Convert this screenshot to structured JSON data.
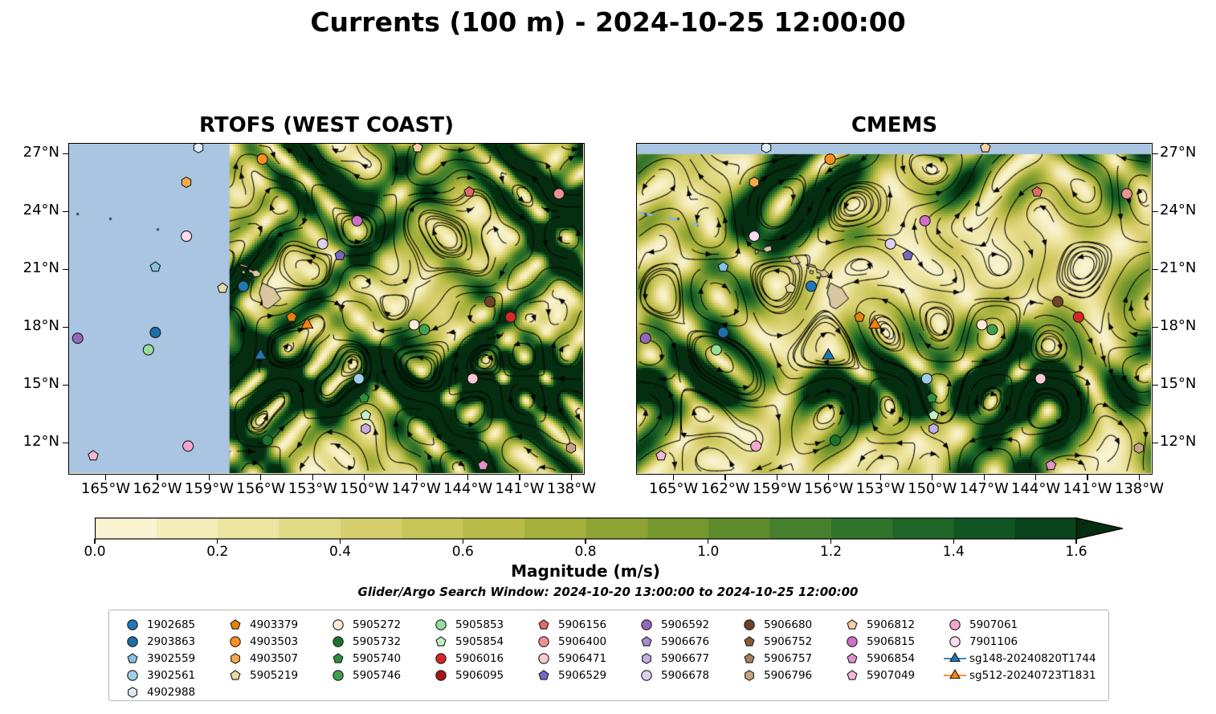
{
  "title": "Currents (100 m) - 2024-10-25 12:00:00",
  "subtitle": "Glider/Argo Search Window: 2024-10-20 13:00:00 to 2024-10-25 12:00:00",
  "chart_data": {
    "type": "streamline-map",
    "panels": [
      {
        "title": "RTOFS (WEST COAST)",
        "no_data_note": "no-data region west of ~158°W shown in blue"
      },
      {
        "title": "CMEMS",
        "no_data_note": "no-data band north of ~27°N shown in blue"
      }
    ],
    "lon_axis": {
      "tick_labels": [
        "165°W",
        "162°W",
        "159°W",
        "156°W",
        "153°W",
        "150°W",
        "147°W",
        "144°W",
        "141°W",
        "138°W"
      ],
      "tick_values": [
        -165,
        -162,
        -159,
        -156,
        -153,
        -150,
        -147,
        -144,
        -141,
        -138
      ],
      "range": [
        -167.1,
        -137.3
      ]
    },
    "lat_axis": {
      "tick_labels": [
        "27°N",
        "24°N",
        "21°N",
        "18°N",
        "15°N",
        "12°N"
      ],
      "tick_values": [
        27,
        24,
        21,
        18,
        15,
        12
      ],
      "range": [
        10.4,
        27.5
      ]
    },
    "colorbar": {
      "label": "Magnitude (m/s)",
      "tick_labels": [
        "0.0",
        "0.2",
        "0.4",
        "0.6",
        "0.8",
        "1.0",
        "1.2",
        "1.4",
        "1.6"
      ],
      "tick_values": [
        0,
        0.2,
        0.4,
        0.6,
        0.8,
        1.0,
        1.2,
        1.4,
        1.6
      ],
      "range": [
        0,
        1.6
      ],
      "extend": "max",
      "band_colors": [
        "#faf3d2",
        "#f4ecb9",
        "#ece49f",
        "#e2d985",
        "#d7cf6d",
        "#c9c558",
        "#b8bb48",
        "#a4b03c",
        "#8da434",
        "#75982f",
        "#5d8c2d",
        "#46802c",
        "#30732a",
        "#1e6527",
        "#105522",
        "#09431a"
      ],
      "extend_color": "#052e10"
    },
    "floats": [
      {
        "id": "1902685",
        "lon": -157.0,
        "lat": 20.1
      },
      {
        "id": "2903863",
        "lon": -162.1,
        "lat": 17.7
      },
      {
        "id": "3902559",
        "lon": -162.1,
        "lat": 21.1
      },
      {
        "id": "3902561",
        "lon": -150.3,
        "lat": 15.3
      },
      {
        "id": "4902988",
        "lon": -159.6,
        "lat": 27.3
      },
      {
        "id": "4903379",
        "lon": -154.2,
        "lat": 18.5
      },
      {
        "id": "4903503",
        "lon": -155.9,
        "lat": 26.7
      },
      {
        "id": "4903507",
        "lon": -160.3,
        "lat": 25.5
      },
      {
        "id": "5905219",
        "lon": -158.2,
        "lat": 20.0
      },
      {
        "id": "5905272",
        "lon": -147.1,
        "lat": 18.1
      },
      {
        "id": "5905732",
        "lon": -155.6,
        "lat": 12.1
      },
      {
        "id": "5905740",
        "lon": -150.0,
        "lat": 14.3
      },
      {
        "id": "5905746",
        "lon": -146.5,
        "lat": 17.85
      },
      {
        "id": "5905853",
        "lon": -162.5,
        "lat": 16.8
      },
      {
        "id": "5905854",
        "lon": -149.9,
        "lat": 13.4
      },
      {
        "id": "5906016",
        "lon": -141.5,
        "lat": 18.5
      },
      {
        "id": "5906156",
        "lon": -143.9,
        "lat": 25.0
      },
      {
        "id": "5906400",
        "lon": -138.7,
        "lat": 24.9
      },
      {
        "id": "5906471",
        "lon": -143.7,
        "lat": 15.3
      },
      {
        "id": "5906529",
        "lon": -151.4,
        "lat": 21.7
      },
      {
        "id": "5906592",
        "lon": -166.6,
        "lat": 17.4
      },
      {
        "id": "5906677",
        "lon": -149.9,
        "lat": 12.7
      },
      {
        "id": "5906678",
        "lon": -152.4,
        "lat": 22.3
      },
      {
        "id": "5906680",
        "lon": -142.7,
        "lat": 19.3
      },
      {
        "id": "5906796",
        "lon": -138.0,
        "lat": 11.7
      },
      {
        "id": "5906812",
        "lon": -146.9,
        "lat": 27.3
      },
      {
        "id": "5906815",
        "lon": -150.4,
        "lat": 23.5
      },
      {
        "id": "5906854",
        "lon": -143.1,
        "lat": 10.8
      },
      {
        "id": "5907049",
        "lon": -165.7,
        "lat": 11.3
      },
      {
        "id": "5907061",
        "lon": -160.2,
        "lat": 11.8
      },
      {
        "id": "7901106",
        "lon": -160.3,
        "lat": 22.7
      }
    ],
    "gliders": [
      {
        "id": "sg148-20240820T1744",
        "lon": -156.0,
        "lat": 16.5
      },
      {
        "id": "sg512-20240723T1831",
        "lon": -153.3,
        "lat": 18.1
      }
    ]
  },
  "legend": {
    "columns": [
      [
        {
          "label": "1902685",
          "shape": "circle",
          "color": "#1f77b4"
        },
        {
          "label": "2903863",
          "shape": "circle",
          "color": "#1d6fa8"
        },
        {
          "label": "3902559",
          "shape": "pentagon",
          "color": "#85c1e0"
        },
        {
          "label": "3902561",
          "shape": "circle",
          "color": "#9ecfe8"
        },
        {
          "label": "4902988",
          "shape": "hexagon",
          "color": "#ddeef7"
        }
      ],
      [
        {
          "label": "4903379",
          "shape": "pentagon",
          "color": "#e8820c"
        },
        {
          "label": "4903503",
          "shape": "circle",
          "color": "#ff8f1f"
        },
        {
          "label": "4903507",
          "shape": "hexagon",
          "color": "#f7a94a"
        },
        {
          "label": "5905219",
          "shape": "pentagon",
          "color": "#e9d9a6"
        }
      ],
      [
        {
          "label": "5905272",
          "shape": "circle",
          "color": "#fcecd4"
        },
        {
          "label": "5905732",
          "shape": "circle",
          "color": "#19732a"
        },
        {
          "label": "5905740",
          "shape": "pentagon",
          "color": "#2d8f3a"
        },
        {
          "label": "5905746",
          "shape": "circle",
          "color": "#3fa04c"
        }
      ],
      [
        {
          "label": "5905853",
          "shape": "circle",
          "color": "#97dd9b"
        },
        {
          "label": "5905854",
          "shape": "pentagon",
          "color": "#c4efc6"
        },
        {
          "label": "5906016",
          "shape": "circle",
          "color": "#d62728"
        },
        {
          "label": "5906095",
          "shape": "circle",
          "color": "#a61717"
        }
      ],
      [
        {
          "label": "5906156",
          "shape": "pentagon",
          "color": "#e26a6a"
        },
        {
          "label": "5906400",
          "shape": "circle",
          "color": "#ef9191"
        },
        {
          "label": "5906471",
          "shape": "circle",
          "color": "#f8c9ce"
        },
        {
          "label": "5906529",
          "shape": "pentagon",
          "color": "#7a68c9"
        }
      ],
      [
        {
          "label": "5906592",
          "shape": "circle",
          "color": "#9467bd"
        },
        {
          "label": "5906676",
          "shape": "pentagon",
          "color": "#a98bd3"
        },
        {
          "label": "5906677",
          "shape": "hexagon",
          "color": "#c3ade3"
        },
        {
          "label": "5906678",
          "shape": "circle",
          "color": "#ddd0ef"
        }
      ],
      [
        {
          "label": "5906680",
          "shape": "circle",
          "color": "#6e4427"
        },
        {
          "label": "5906752",
          "shape": "pentagon",
          "color": "#8a5a38"
        },
        {
          "label": "5906757",
          "shape": "pentagon",
          "color": "#a97e5e"
        },
        {
          "label": "5906796",
          "shape": "hexagon",
          "color": "#c7a37f"
        }
      ],
      [
        {
          "label": "5906812",
          "shape": "pentagon",
          "color": "#f7cfa4"
        },
        {
          "label": "5906815",
          "shape": "circle",
          "color": "#cf6fc8"
        },
        {
          "label": "5906854",
          "shape": "pentagon",
          "color": "#e393cd"
        },
        {
          "label": "5907049",
          "shape": "pentagon",
          "color": "#f2b8dd"
        }
      ],
      [
        {
          "label": "5907061",
          "shape": "circle",
          "color": "#f5a6ce"
        },
        {
          "label": "7901106",
          "shape": "circle",
          "color": "#fbdcec"
        },
        {
          "label": "sg148-20240820T1744",
          "shape": "glider",
          "color": "#1f77b4"
        },
        {
          "label": "sg512-20240723T1831",
          "shape": "glider",
          "color": "#ff7f0e"
        }
      ]
    ]
  },
  "map_style": {
    "no_data_color": "#a9c5e2",
    "land_color": "#d8c7a0",
    "streamline_color": "#000000"
  }
}
